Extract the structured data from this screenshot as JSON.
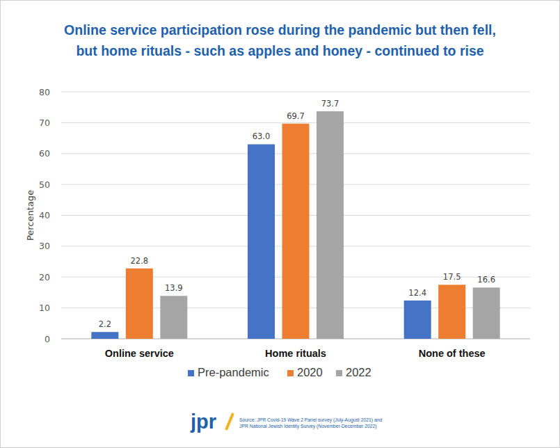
{
  "chart_data": {
    "type": "bar",
    "title": [
      "Online service participation rose during the pandemic but then fell,",
      "but home rituals - such as apples and honey - continued to rise"
    ],
    "y_label": "Percentage",
    "categories": [
      "Online service",
      "Home rituals",
      "None of these"
    ],
    "series": [
      {
        "name": "Pre-pandemic",
        "color": "#4472c4",
        "values": [
          2.2,
          63.0,
          12.4
        ],
        "value_labels": [
          "2.2",
          "63.0",
          "12.4"
        ]
      },
      {
        "name": "2020",
        "color": "#ed7d31",
        "values": [
          22.8,
          69.7,
          17.5
        ],
        "value_labels": [
          "22.8",
          "69.7",
          "17.5"
        ]
      },
      {
        "name": "2022",
        "color": "#a5a5a5",
        "values": [
          13.9,
          73.7,
          16.6
        ],
        "value_labels": [
          "13.9",
          "73.7",
          "16.6"
        ]
      }
    ],
    "ylim": [
      0,
      80
    ],
    "yticks": [
      0,
      10,
      20,
      30,
      40,
      50,
      60,
      70,
      80
    ],
    "grid": true,
    "data_labels": true,
    "legend": "bottom",
    "logo": "jpr",
    "source": [
      "Source: JPR Covid-19 Wave 2 Panel survey (July-August 2021) and",
      "JPR National Jewish Identity Survey (November-December  2022)"
    ]
  }
}
